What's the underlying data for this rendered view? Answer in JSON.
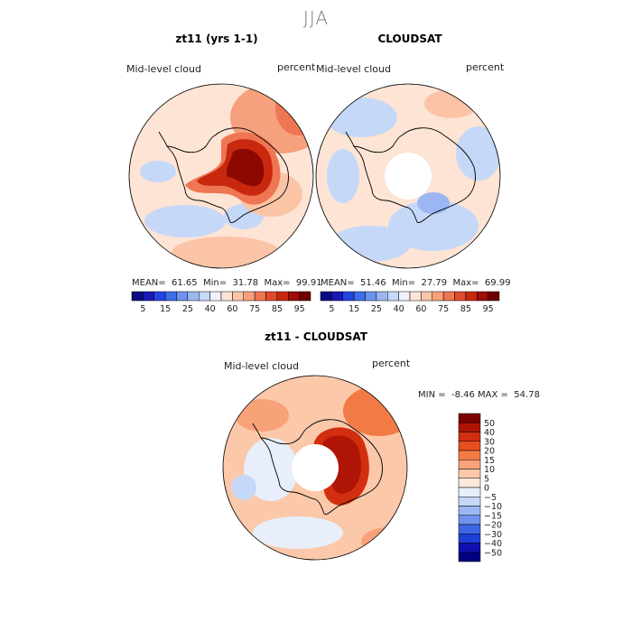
{
  "season": "JJA",
  "panels": [
    {
      "title": "zt11 (yrs 1-1)",
      "variable": "Mid-level cloud",
      "units": "percent",
      "mean_label": "MEAN=",
      "mean": "61.65",
      "min_label": "Min=",
      "min": "31.78",
      "max_label": "Max=",
      "max": "99.91"
    },
    {
      "title": "CLOUDSAT",
      "variable": "Mid-level cloud",
      "units": "percent",
      "mean_label": "MEAN=",
      "mean": "51.46",
      "min_label": "Min=",
      "min": "27.79",
      "max_label": "Max=",
      "max": "69.99"
    },
    {
      "title": "zt11 - CLOUDSAT",
      "variable": "Mid-level cloud",
      "units": "percent",
      "min_label": "MIN =",
      "min": "-8.46",
      "max_label": "MAX =",
      "max": "54.78"
    }
  ],
  "chart_data": [
    {
      "type": "heatmap",
      "title": "zt11 (yrs 1-1)",
      "projection": "south-polar stereographic",
      "variable": "Mid-level cloud",
      "units": "percent",
      "stats": {
        "mean": 61.65,
        "min": 31.78,
        "max": 99.91
      },
      "colorbar": {
        "orientation": "horizontal",
        "levels": [
          5,
          10,
          15,
          20,
          25,
          30,
          40,
          50,
          60,
          70,
          75,
          80,
          85,
          90,
          95
        ],
        "tick_labels": [
          "5",
          "15",
          "25",
          "40",
          "60",
          "75",
          "85",
          "95"
        ],
        "colors": [
          "#0c0c80",
          "#1a1ab8",
          "#2244e0",
          "#3e6ee8",
          "#6c94ee",
          "#9bb6f2",
          "#c6d8f8",
          "#eef2fb",
          "#fde4d4",
          "#fbc4a6",
          "#f8a07c",
          "#ef7652",
          "#e24a2c",
          "#c8280e",
          "#a00c04",
          "#6e0000"
        ]
      }
    },
    {
      "type": "heatmap",
      "title": "CLOUDSAT",
      "projection": "south-polar stereographic",
      "variable": "Mid-level cloud",
      "units": "percent",
      "stats": {
        "mean": 51.46,
        "min": 27.79,
        "max": 69.99
      },
      "colorbar": {
        "orientation": "horizontal",
        "levels": [
          5,
          10,
          15,
          20,
          25,
          30,
          40,
          50,
          60,
          70,
          75,
          80,
          85,
          90,
          95
        ],
        "tick_labels": [
          "5",
          "15",
          "25",
          "40",
          "60",
          "75",
          "85",
          "95"
        ],
        "colors": [
          "#0c0c80",
          "#1a1ab8",
          "#2244e0",
          "#3e6ee8",
          "#6c94ee",
          "#9bb6f2",
          "#c6d8f8",
          "#eef2fb",
          "#fde4d4",
          "#fbc4a6",
          "#f8a07c",
          "#ef7652",
          "#e24a2c",
          "#c8280e",
          "#a00c04",
          "#6e0000"
        ]
      }
    },
    {
      "type": "heatmap",
      "title": "zt11 - CLOUDSAT",
      "projection": "south-polar stereographic",
      "variable": "Mid-level cloud",
      "units": "percent",
      "stats": {
        "min": -8.46,
        "max": 54.78
      },
      "colorbar": {
        "orientation": "vertical",
        "levels": [
          50,
          40,
          30,
          20,
          15,
          10,
          5,
          0,
          -5,
          -10,
          -15,
          -20,
          -30,
          -40,
          -50
        ],
        "tick_labels": [
          "50",
          "40",
          "30",
          "20",
          "15",
          "10",
          "5",
          "0",
          "−5",
          "−10",
          "−15",
          "−20",
          "−30",
          "−40",
          "−50"
        ],
        "colors": [
          "#7a0000",
          "#b01404",
          "#d22e10",
          "#e6501e",
          "#f27a44",
          "#f8a27a",
          "#fbc8aa",
          "#fde8dc",
          "#e8eefa",
          "#c6d8f8",
          "#9cb8f2",
          "#6e92ee",
          "#3c66e4",
          "#1e3ed8",
          "#1010b0",
          "#000080"
        ]
      }
    }
  ]
}
